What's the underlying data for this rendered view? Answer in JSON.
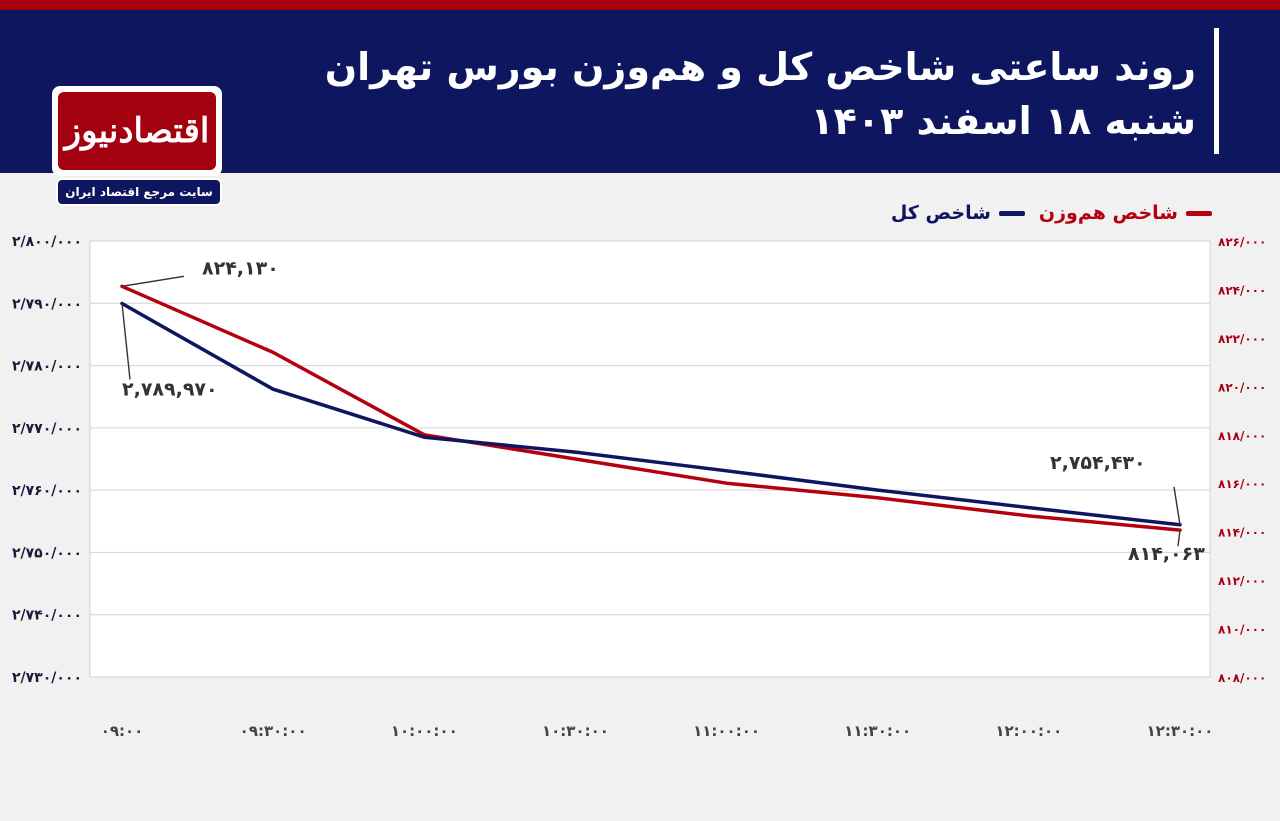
{
  "header": {
    "title": "روند ساعتی شاخص کل و هم‌وزن بورس تهران",
    "subtitle": "شنبه ۱۸ اسفند ۱۴۰۳"
  },
  "logo": {
    "name": "اقتصادنیوز",
    "tagline": "سایت مرجع اقتصاد ایران"
  },
  "colors": {
    "header_bg": "#0e1660",
    "accent_red": "#a8000f",
    "series_total": "#0e1660",
    "series_equal": "#b5000f"
  },
  "chart_data": {
    "type": "line",
    "categories": [
      "۰۹:۰۰",
      "۰۹:۳۰:۰۰",
      "۱۰:۰۰:۰۰",
      "۱۰:۳۰:۰۰",
      "۱۱:۰۰:۰۰",
      "۱۱:۳۰:۰۰",
      "۱۲:۰۰:۰۰",
      "۱۲:۳۰:۰۰"
    ],
    "x": [
      0,
      0.5,
      1.0,
      1.5,
      2.0,
      2.5,
      3.0,
      3.5
    ],
    "series": [
      {
        "name": "شاخص کل",
        "axis": "left",
        "color": "#0e1660",
        "x": [
          0,
          0.5,
          1.0,
          1.5,
          2.0,
          2.5,
          3.0,
          3.5
        ],
        "values": [
          2789970,
          2776200,
          2768500,
          2766100,
          2763100,
          2760000,
          2757200,
          2754430
        ]
      },
      {
        "name": "شاخص هم‌وزن",
        "axis": "right",
        "color": "#b5000f",
        "x": [
          0,
          0.5,
          1.0,
          1.5,
          2.0,
          2.5,
          3.0,
          3.5
        ],
        "values": [
          824130,
          821400,
          818000,
          817000,
          816000,
          815400,
          814650,
          814063
        ]
      }
    ],
    "left_axis": {
      "ylim": [
        2730000,
        2800000
      ],
      "ticks": [
        2800000,
        2790000,
        2780000,
        2770000,
        2760000,
        2750000,
        2740000,
        2730000
      ],
      "tick_labels": [
        "۲/۸۰۰/۰۰۰",
        "۲/۷۹۰/۰۰۰",
        "۲/۷۸۰/۰۰۰",
        "۲/۷۷۰/۰۰۰",
        "۲/۷۶۰/۰۰۰",
        "۲/۷۵۰/۰۰۰",
        "۲/۷۴۰/۰۰۰",
        "۲/۷۳۰/۰۰۰"
      ]
    },
    "right_axis": {
      "ylim": [
        808000,
        826000
      ],
      "ticks": [
        826000,
        824000,
        822000,
        820000,
        818000,
        816000,
        814000,
        812000,
        810000,
        808000
      ],
      "tick_labels": [
        "۸۲۶/۰۰۰",
        "۸۲۴/۰۰۰",
        "۸۲۲/۰۰۰",
        "۸۲۰/۰۰۰",
        "۸۱۸/۰۰۰",
        "۸۱۶/۰۰۰",
        "۸۱۴/۰۰۰",
        "۸۱۲/۰۰۰",
        "۸۱۰/۰۰۰",
        "۸۰۸/۰۰۰"
      ]
    },
    "annotations": [
      {
        "series": 1,
        "point": 0,
        "text": "۸۲۴,۱۳۰"
      },
      {
        "series": 0,
        "point": 0,
        "text": "۲,۷۸۹,۹۷۰"
      },
      {
        "series": 0,
        "point": 7,
        "text": "۲,۷۵۴,۴۳۰"
      },
      {
        "series": 1,
        "point": 7,
        "text": "۸۱۴,۰۶۳"
      }
    ],
    "grid": true,
    "legend_position": "top-right"
  }
}
